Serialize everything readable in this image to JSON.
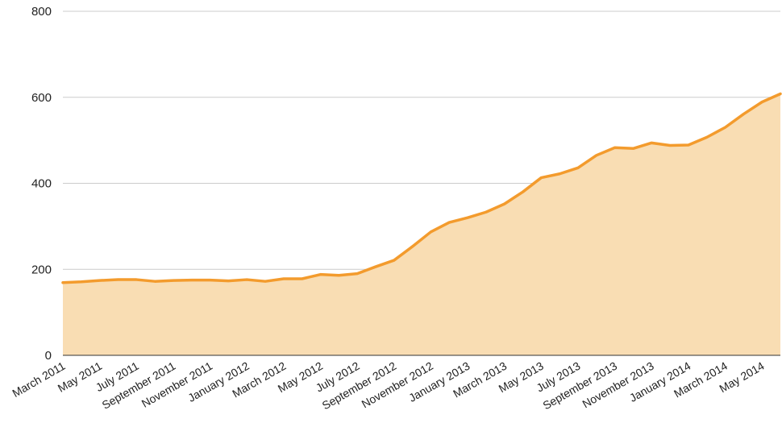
{
  "chart_data": {
    "type": "area",
    "title": "",
    "xlabel": "",
    "ylabel": "",
    "ylim": [
      0,
      800
    ],
    "yticks": [
      0,
      200,
      400,
      600,
      800
    ],
    "grid": true,
    "legend": "none",
    "x": [
      "2011-03",
      "2011-04",
      "2011-05",
      "2011-06",
      "2011-07",
      "2011-08",
      "2011-09",
      "2011-10",
      "2011-11",
      "2011-12",
      "2012-01",
      "2012-02",
      "2012-03",
      "2012-04",
      "2012-05",
      "2012-06",
      "2012-07",
      "2012-08",
      "2012-09",
      "2012-10",
      "2012-11",
      "2012-12",
      "2013-01",
      "2013-02",
      "2013-03",
      "2013-04",
      "2013-05",
      "2013-06",
      "2013-07",
      "2013-08",
      "2013-09",
      "2013-10",
      "2013-11",
      "2013-12",
      "2014-01",
      "2014-02",
      "2014-03",
      "2014-04",
      "2014-05",
      "2014-06"
    ],
    "x_tick_labels": [
      "March 2011",
      "May 2011",
      "July 2011",
      "September 2011",
      "November 2011",
      "January 2012",
      "March 2012",
      "May 2012",
      "July 2012",
      "September 2012",
      "November 2012",
      "January 2013",
      "March 2013",
      "May 2013",
      "July 2013",
      "September 2013",
      "November 2013",
      "January 2014",
      "March 2014",
      "May 2014"
    ],
    "series": [
      {
        "values": [
          169,
          171,
          174,
          176,
          176,
          172,
          174,
          175,
          175,
          173,
          176,
          172,
          178,
          178,
          188,
          186,
          190,
          206,
          221,
          253,
          287,
          309,
          320,
          333,
          352,
          380,
          413,
          422,
          436,
          465,
          483,
          481,
          494,
          488,
          489,
          507,
          530,
          561,
          589,
          608
        ]
      }
    ],
    "colors": {
      "line": "#f39b2d",
      "fill": "#f9ddb3",
      "grid": "#cccccc",
      "baseline": "#333333"
    }
  }
}
